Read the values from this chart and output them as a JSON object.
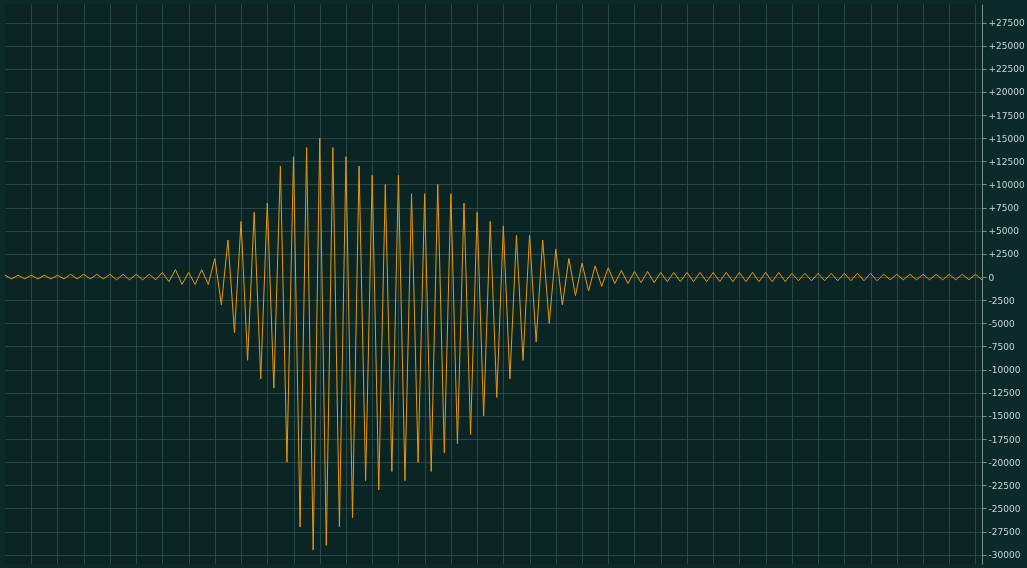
{
  "chart_data": {
    "type": "line",
    "categories": [
      null,
      null,
      null,
      null,
      null,
      null,
      null,
      null,
      null,
      null,
      null,
      null,
      null,
      null,
      null,
      null,
      null,
      null,
      null,
      null,
      null,
      null,
      null,
      null,
      null,
      null,
      null,
      null,
      null,
      null,
      null,
      null,
      null,
      null,
      null,
      null,
      null,
      null,
      null,
      null,
      null,
      null,
      null,
      null,
      null,
      null,
      null,
      null,
      null,
      null,
      null,
      null,
      null,
      null,
      null,
      null,
      null,
      null,
      null,
      null,
      null,
      null,
      null,
      null,
      null,
      null,
      null,
      null,
      null,
      null,
      null,
      null,
      null,
      null,
      null,
      null,
      null,
      null,
      null,
      null,
      null,
      null,
      null,
      null,
      null,
      null,
      null,
      null,
      null,
      null,
      null,
      null,
      null,
      null,
      null,
      null,
      null,
      null,
      null,
      null,
      null,
      null,
      null,
      null,
      null,
      null,
      null,
      null,
      null,
      null,
      null,
      null,
      null,
      null,
      null,
      null,
      null,
      null,
      null,
      null,
      null,
      null,
      null,
      null,
      null,
      null,
      null,
      null,
      null,
      null,
      null,
      null,
      null,
      null,
      null,
      null,
      null,
      null,
      null,
      null,
      null,
      null,
      null,
      null,
      null,
      null,
      null,
      null,
      null,
      null
    ],
    "series": [
      {
        "color": "#e8980f",
        "values": [
          200,
          -200,
          200,
          -200,
          200,
          -200,
          200,
          -200,
          200,
          -200,
          300,
          -200,
          300,
          -200,
          300,
          -200,
          300,
          -300,
          300,
          -300,
          300,
          -300,
          300,
          -300,
          500,
          -500,
          800,
          -800,
          500,
          -800,
          800,
          -800,
          2000,
          -3000,
          4000,
          -6000,
          6000,
          -9000,
          7000,
          -11000,
          8000,
          -12000,
          12000,
          -20000,
          13000,
          -27000,
          14000,
          -29500,
          15000,
          -29000,
          14000,
          -27000,
          13000,
          -26000,
          12000,
          -22000,
          11000,
          -23000,
          10000,
          -21000,
          11000,
          -22000,
          9000,
          -20000,
          9000,
          -21000,
          10000,
          -19000,
          9000,
          -18000,
          8000,
          -17000,
          7000,
          -15000,
          6000,
          -13000,
          5500,
          -11000,
          4500,
          -9000,
          4500,
          -7000,
          4000,
          -5000,
          3000,
          -3000,
          2000,
          -2000,
          1500,
          -1500,
          1200,
          -1000,
          1000,
          -700,
          700,
          -700,
          600,
          -600,
          600,
          -600,
          500,
          -500,
          500,
          -500,
          500,
          -500,
          500,
          -500,
          500,
          -500,
          500,
          -500,
          500,
          -500,
          500,
          -500,
          500,
          -500,
          500,
          -500,
          400,
          -400,
          400,
          -400,
          400,
          -400,
          400,
          -400,
          400,
          -400,
          400,
          -400,
          400,
          -400,
          300,
          -300,
          300,
          -300,
          300,
          -300,
          300,
          -300,
          300,
          -300,
          300,
          -300,
          300,
          -300,
          300,
          -300
        ]
      }
    ],
    "ylim": [
      -31000,
      29500
    ],
    "yticks": [
      -30000,
      -27500,
      -25000,
      -22500,
      -20000,
      -17500,
      -15000,
      -12500,
      -10000,
      -7500,
      -5000,
      -2500,
      0,
      {
        "value": 2500,
        "label": "+2500"
      },
      {
        "value": 5000,
        "label": "+5000"
      },
      {
        "value": 7500,
        "label": "+7500"
      },
      {
        "value": 10000,
        "label": "+10000"
      },
      {
        "value": 12500,
        "label": "+12500"
      },
      {
        "value": 15000,
        "label": "+15000"
      },
      {
        "value": 17500,
        "label": "+17500"
      },
      {
        "value": 20000,
        "label": "+20000"
      },
      {
        "value": 22500,
        "label": "+22500"
      },
      {
        "value": 25000,
        "label": "+25000"
      },
      {
        "value": 27500,
        "label": "+27500"
      }
    ],
    "grid": true,
    "tick_labels": "y"
  }
}
